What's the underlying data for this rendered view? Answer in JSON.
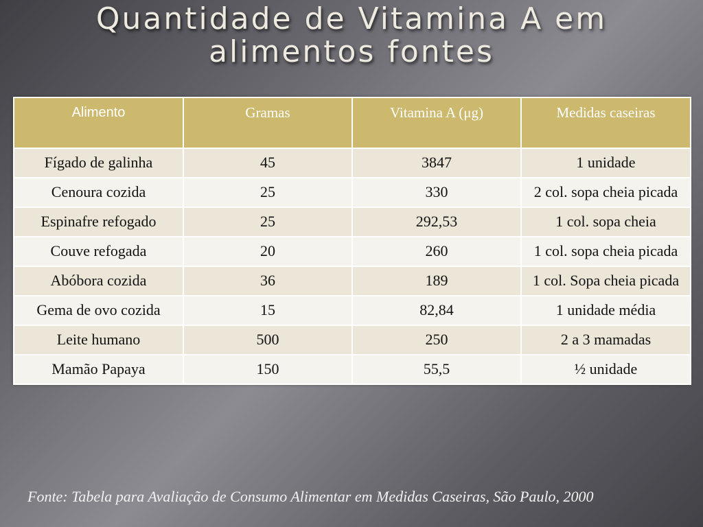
{
  "title": {
    "line1": "Quantidade de Vitamina A em",
    "line2": "alimentos fontes"
  },
  "table": {
    "headers": [
      "Alimento",
      "Gramas",
      "Vitamina A (μg)",
      "Medidas caseiras"
    ],
    "rows": [
      [
        "Fígado de galinha",
        "45",
        "3847",
        "1 unidade"
      ],
      [
        "Cenoura cozida",
        "25",
        "330",
        "2 col. sopa cheia picada"
      ],
      [
        "Espinafre refogado",
        "25",
        "292,53",
        "1 col. sopa cheia"
      ],
      [
        "Couve refogada",
        "20",
        "260",
        "1 col. sopa cheia picada"
      ],
      [
        "Abóbora cozida",
        "36",
        "189",
        "1 col. Sopa cheia picada"
      ],
      [
        "Gema de ovo cozida",
        "15",
        "82,84",
        "1 unidade média"
      ],
      [
        "Leite humano",
        "500",
        "250",
        "2 a 3 mamadas"
      ],
      [
        "Mamão Papaya",
        "150",
        "55,5",
        "½ unidade"
      ]
    ]
  },
  "source": "Fonte: Tabela para Avaliação de Consumo Alimentar em Medidas Caseiras, São Paulo, 2000",
  "colors": {
    "header_bg": "#ccb96e",
    "row_shade": "#ece6d8",
    "row_light": "#f5f3ee"
  }
}
